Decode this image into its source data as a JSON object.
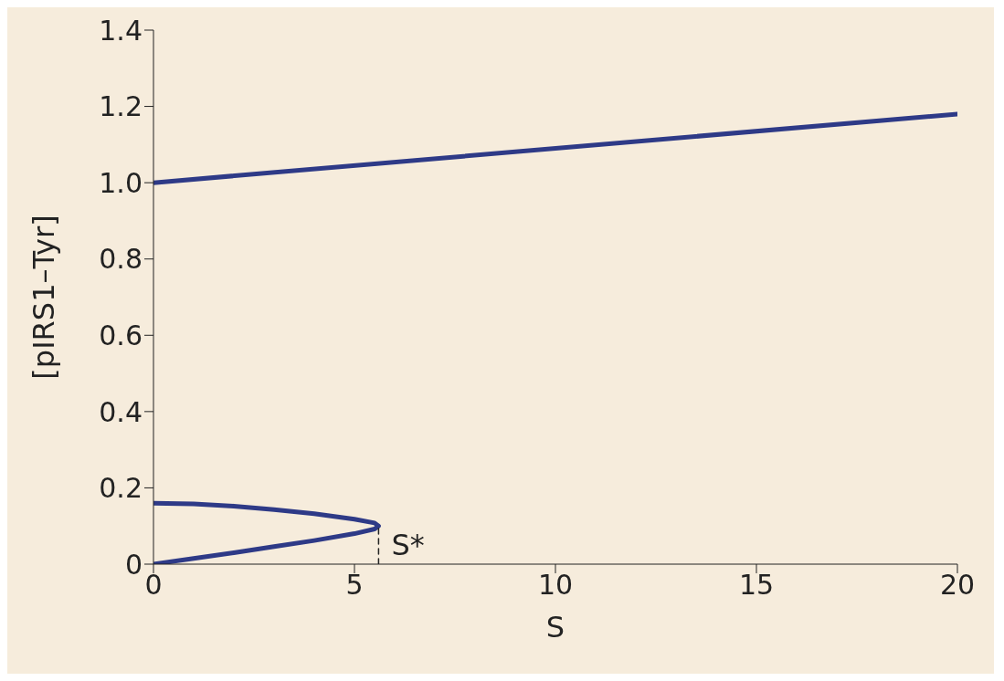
{
  "chart_data": {
    "type": "line",
    "xlabel": "S",
    "ylabel": "[pIRS1–Tyr]",
    "xlim": [
      0,
      20
    ],
    "xticks": [
      0,
      5,
      10,
      15,
      20
    ],
    "ylim": [
      0,
      1.4
    ],
    "yticks": [
      0,
      0.2,
      0.4,
      0.6,
      0.8,
      {
        "value": 1,
        "label": "1.0"
      },
      1.2,
      1.4
    ],
    "marker": "none",
    "series": [
      {
        "color": "#2e3a87",
        "x": [
          0,
          20
        ],
        "values": [
          1.0,
          1.18
        ]
      },
      {
        "color": "#2e3a87",
        "x": [
          0,
          1,
          2,
          3,
          4,
          5,
          5.5,
          5.6,
          5.5,
          5,
          4,
          3,
          2,
          1,
          0
        ],
        "values": [
          0.16,
          0.158,
          0.152,
          0.143,
          0.132,
          0.118,
          0.108,
          0.1,
          0.092,
          0.08,
          0.062,
          0.046,
          0.03,
          0.015,
          0.0
        ]
      },
      {
        "color": "#222222",
        "line_style": "dashed",
        "x": [
          5.6,
          5.6
        ],
        "values": [
          0,
          0.1
        ]
      }
    ],
    "annotations": [
      {
        "text": "S*",
        "x": 5.6,
        "y": 0.05
      }
    ]
  }
}
